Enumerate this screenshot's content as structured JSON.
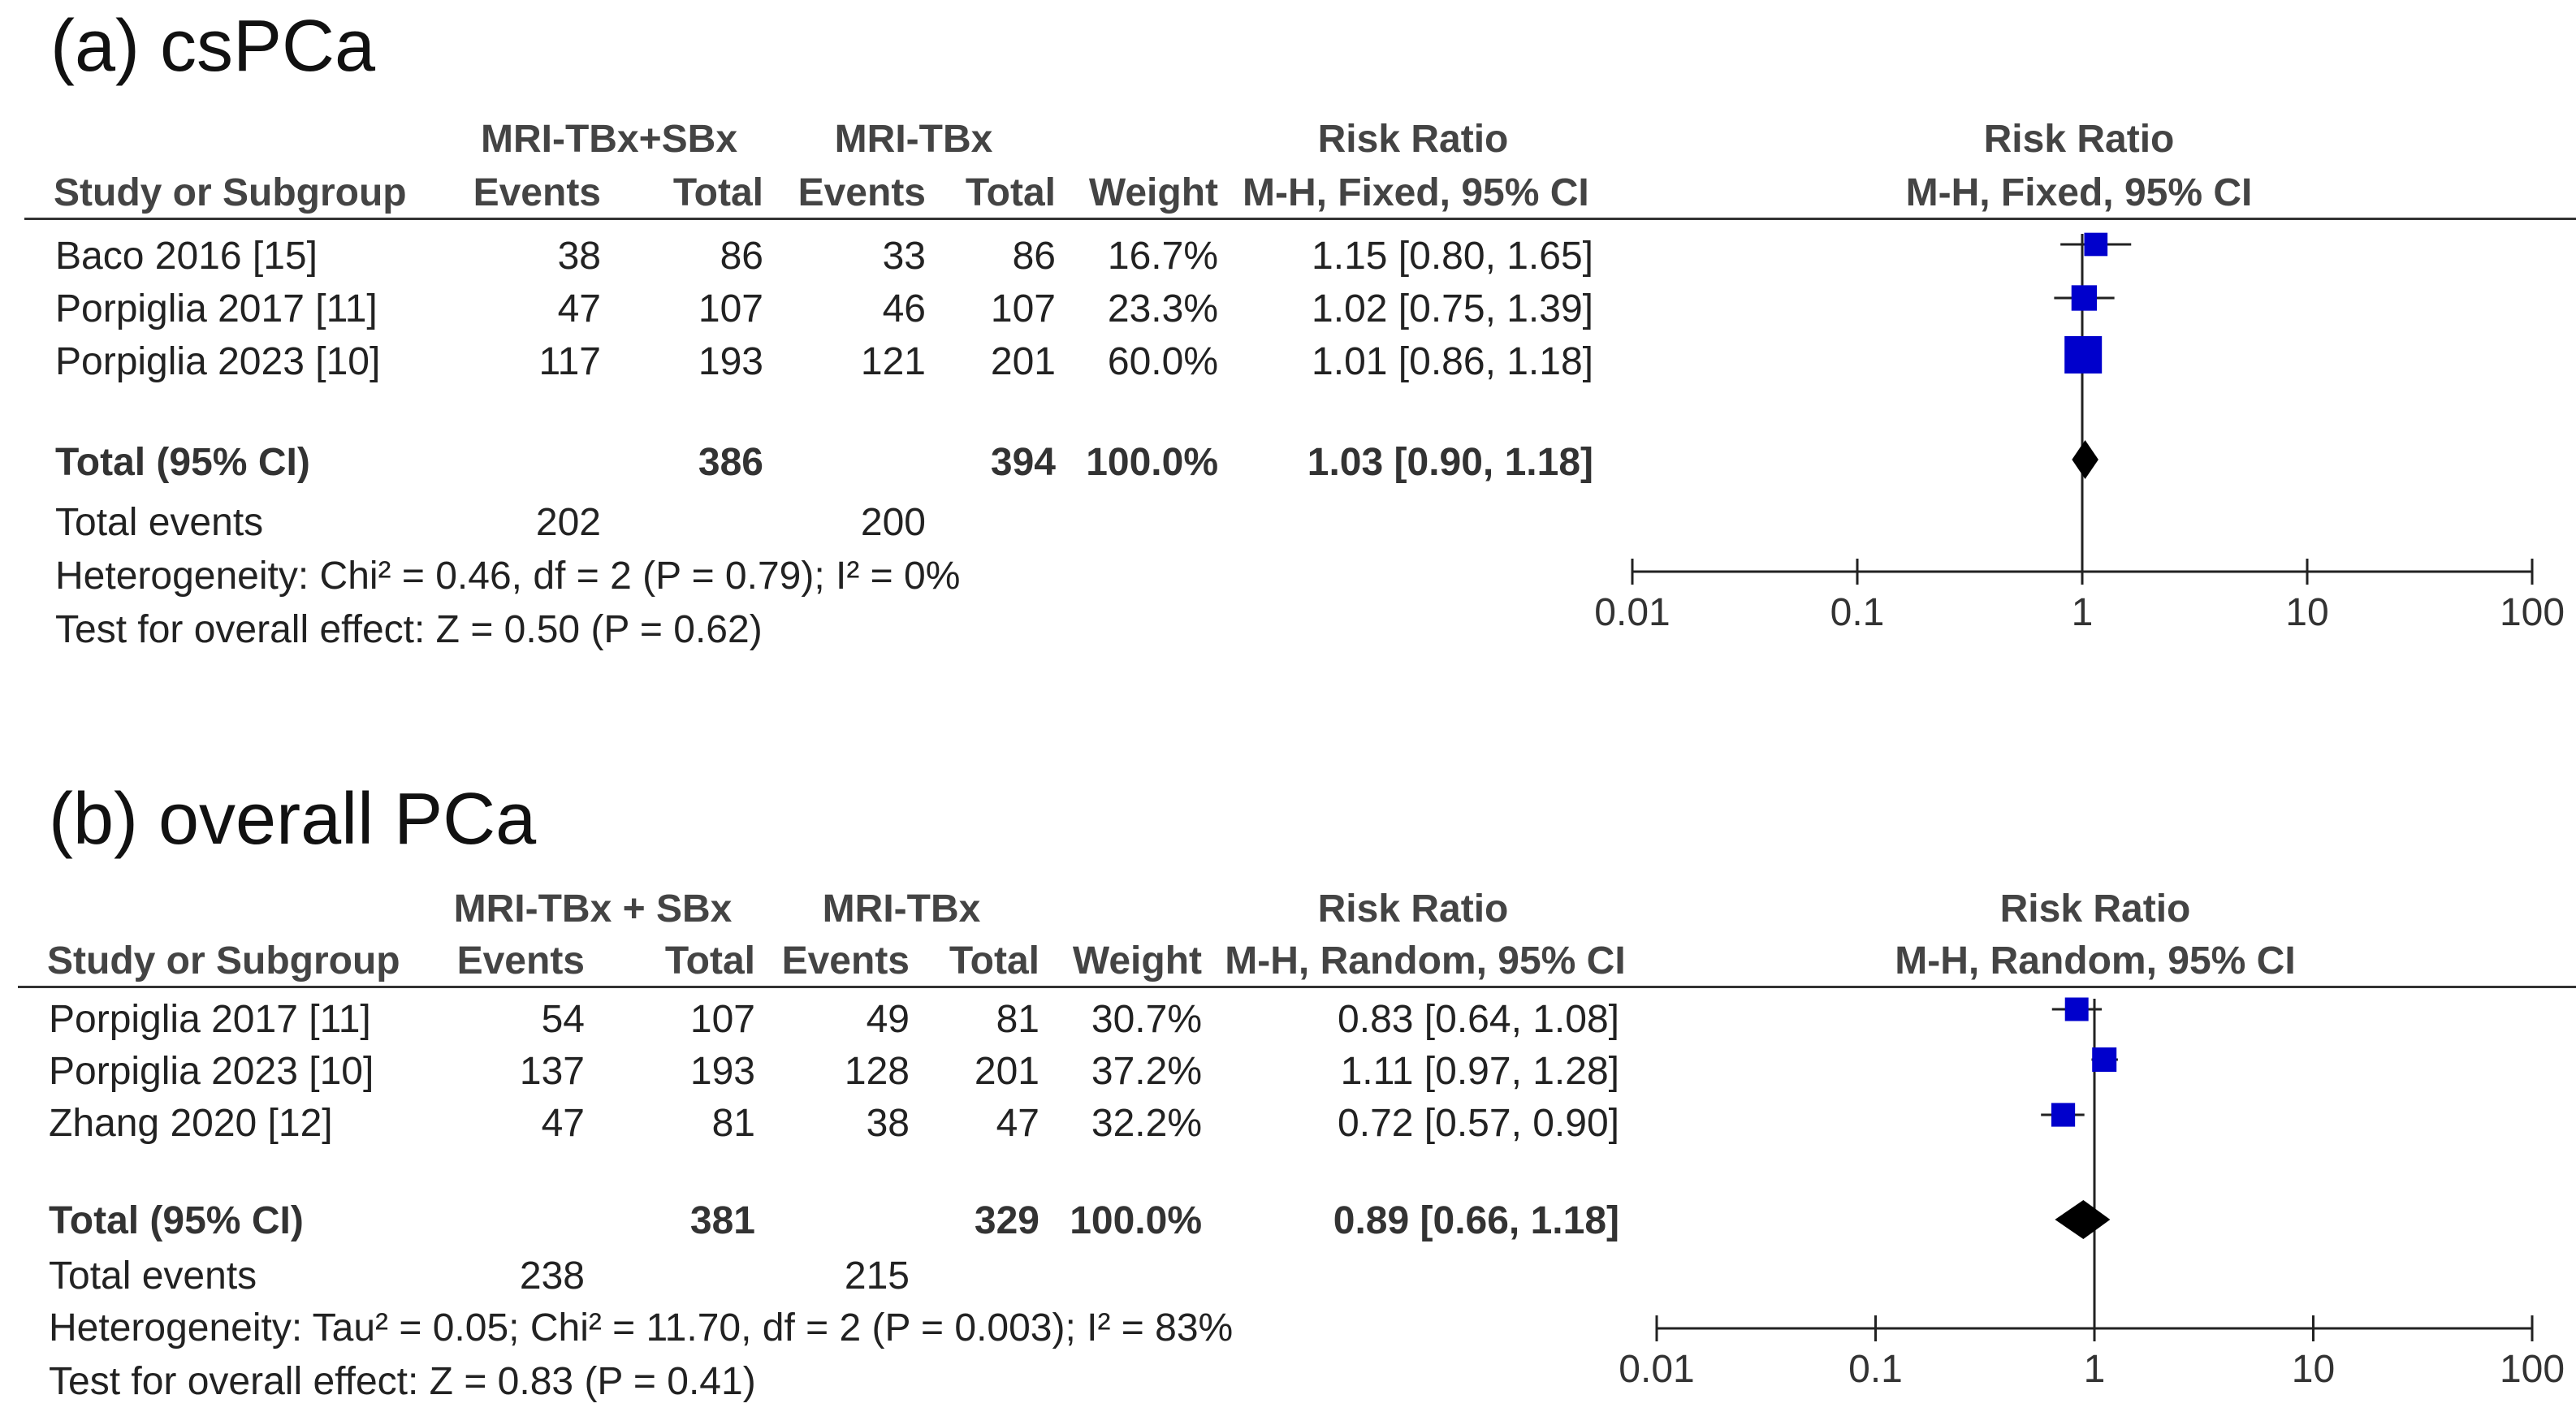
{
  "panels": [
    {
      "title": "(a) csPCa",
      "group1_label": "MRI-TBx+SBx",
      "group2_label": "MRI-TBx",
      "col_study": "Study or Subgroup",
      "col_events": "Events",
      "col_total": "Total",
      "col_weight": "Weight",
      "effect_header": "Risk Ratio",
      "effect_method": "M-H, Fixed, 95% CI",
      "studies": [
        {
          "name": "Baco 2016 [15]",
          "e1": "38",
          "t1": "86",
          "e2": "33",
          "t2": "86",
          "weight": "16.7%",
          "ci_text": "1.15 [0.80, 1.65]"
        },
        {
          "name": "Porpiglia 2017 [11]",
          "e1": "47",
          "t1": "107",
          "e2": "46",
          "t2": "107",
          "weight": "23.3%",
          "ci_text": "1.02 [0.75, 1.39]"
        },
        {
          "name": "Porpiglia 2023 [10]",
          "e1": "117",
          "t1": "193",
          "e2": "121",
          "t2": "201",
          "weight": "60.0%",
          "ci_text": "1.01 [0.86, 1.18]"
        }
      ],
      "total": {
        "label": "Total (95% CI)",
        "t1": "386",
        "t2": "394",
        "weight": "100.0%",
        "ci_text": "1.03 [0.90, 1.18]"
      },
      "events": {
        "label": "Total events",
        "e1": "202",
        "e2": "200"
      },
      "heterogeneity": "Heterogeneity: Chi² = 0.46, df = 2 (P = 0.79); I² = 0%",
      "overall_effect": "Test for overall effect: Z = 0.50 (P = 0.62)",
      "axis_ticks": [
        "0.01",
        "0.1",
        "1",
        "10",
        "100"
      ]
    },
    {
      "title": "(b) overall PCa",
      "group1_label": "MRI-TBx + SBx",
      "group2_label": "MRI-TBx",
      "col_study": "Study or Subgroup",
      "col_events": "Events",
      "col_total": "Total",
      "col_weight": "Weight",
      "effect_header": "Risk Ratio",
      "effect_method": "M-H, Random, 95% CI",
      "studies": [
        {
          "name": "Porpiglia 2017 [11]",
          "e1": "54",
          "t1": "107",
          "e2": "49",
          "t2": "81",
          "weight": "30.7%",
          "ci_text": "0.83 [0.64, 1.08]"
        },
        {
          "name": "Porpiglia 2023 [10]",
          "e1": "137",
          "t1": "193",
          "e2": "128",
          "t2": "201",
          "weight": "37.2%",
          "ci_text": "1.11 [0.97, 1.28]"
        },
        {
          "name": "Zhang 2020 [12]",
          "e1": "47",
          "t1": "81",
          "e2": "38",
          "t2": "47",
          "weight": "32.2%",
          "ci_text": "0.72 [0.57, 0.90]"
        }
      ],
      "total": {
        "label": "Total (95% CI)",
        "t1": "381",
        "t2": "329",
        "weight": "100.0%",
        "ci_text": "0.89 [0.66, 1.18]"
      },
      "events": {
        "label": "Total events",
        "e1": "238",
        "e2": "215"
      },
      "heterogeneity": "Heterogeneity: Tau² = 0.05; Chi² = 11.70, df = 2 (P = 0.003); I² = 83%",
      "overall_effect": "Test for overall effect: Z = 0.83 (P = 0.41)",
      "axis_ticks": [
        "0.01",
        "0.1",
        "1",
        "10",
        "100"
      ]
    }
  ],
  "chart_data": [
    {
      "type": "forest",
      "title": "(a) csPCa",
      "xscale": "log",
      "xlim": [
        0.01,
        100
      ],
      "ticks": [
        0.01,
        0.1,
        1,
        10,
        100
      ],
      "marker_color": "#0000cc",
      "studies": [
        {
          "name": "Baco 2016 [15]",
          "rr": 1.15,
          "lo": 0.8,
          "hi": 1.65,
          "weight": 16.7
        },
        {
          "name": "Porpiglia 2017 [11]",
          "rr": 1.02,
          "lo": 0.75,
          "hi": 1.39,
          "weight": 23.3
        },
        {
          "name": "Porpiglia 2023 [10]",
          "rr": 1.01,
          "lo": 0.86,
          "hi": 1.18,
          "weight": 60.0
        }
      ],
      "pooled": {
        "rr": 1.03,
        "lo": 0.9,
        "hi": 1.18
      }
    },
    {
      "type": "forest",
      "title": "(b) overall PCa",
      "xscale": "log",
      "xlim": [
        0.01,
        100
      ],
      "ticks": [
        0.01,
        0.1,
        1,
        10,
        100
      ],
      "marker_color": "#0000cc",
      "studies": [
        {
          "name": "Porpiglia 2017 [11]",
          "rr": 0.83,
          "lo": 0.64,
          "hi": 1.08,
          "weight": 30.7
        },
        {
          "name": "Porpiglia 2023 [10]",
          "rr": 1.11,
          "lo": 0.97,
          "hi": 1.28,
          "weight": 37.2
        },
        {
          "name": "Zhang 2020 [12]",
          "rr": 0.72,
          "lo": 0.57,
          "hi": 0.9,
          "weight": 32.2
        }
      ],
      "pooled": {
        "rr": 0.89,
        "lo": 0.66,
        "hi": 1.18
      }
    }
  ]
}
